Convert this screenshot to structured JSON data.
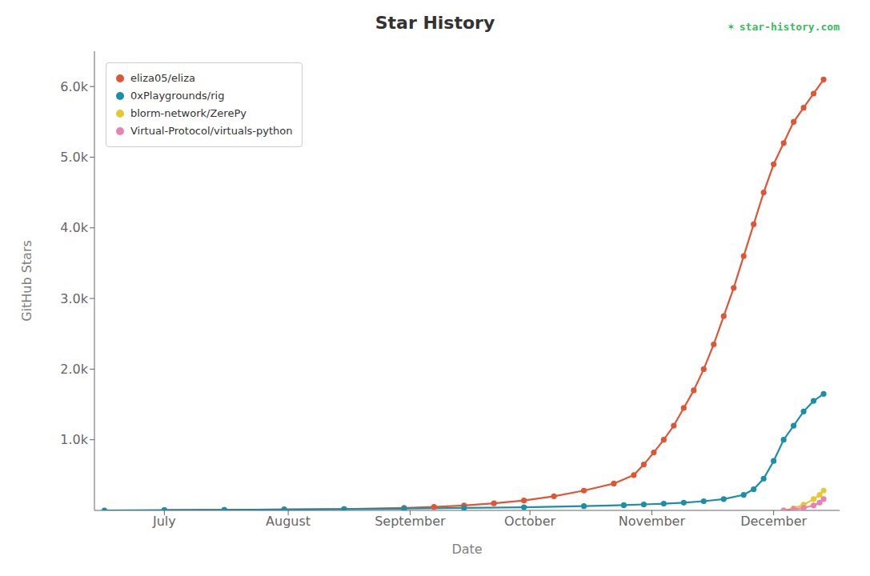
{
  "chart_data": {
    "type": "line",
    "title": "Star History",
    "x_label": "Date",
    "y_label": "GitHub Stars",
    "series": [
      {
        "name": "eliza05/eliza",
        "color": "#e05535",
        "x": [
          30,
          60,
          90,
          120,
          150,
          165,
          180,
          195,
          210,
          225,
          240,
          255,
          265,
          270,
          275,
          280,
          285,
          290,
          295,
          300,
          305,
          310,
          315,
          320,
          325,
          330,
          335,
          340,
          345,
          350,
          355,
          360
        ],
        "values": [
          5,
          8,
          12,
          20,
          35,
          50,
          70,
          100,
          140,
          200,
          280,
          380,
          500,
          650,
          820,
          1000,
          1200,
          1450,
          1700,
          2000,
          2350,
          2750,
          3150,
          3600,
          4050,
          4500,
          4900,
          5200,
          5500,
          5700,
          5900,
          6100
        ]
      },
      {
        "name": "0xPlaygrounds/rig",
        "color": "#1b8fa8",
        "x": [
          0,
          30,
          60,
          90,
          120,
          150,
          180,
          210,
          240,
          260,
          270,
          280,
          290,
          300,
          310,
          320,
          325,
          330,
          335,
          340,
          345,
          350,
          355,
          360
        ],
        "values": [
          0,
          5,
          8,
          12,
          18,
          25,
          35,
          45,
          60,
          75,
          85,
          95,
          110,
          130,
          160,
          220,
          300,
          450,
          700,
          1000,
          1200,
          1400,
          1550,
          1650
        ]
      },
      {
        "name": "blorm-network/ZerePy",
        "color": "#e8c832",
        "x": [
          340,
          345,
          350,
          355,
          358,
          360
        ],
        "values": [
          0,
          30,
          80,
          160,
          220,
          280
        ]
      },
      {
        "name": "Virtual-Protocol/virtuals-python",
        "color": "#e882b0",
        "x": [
          340,
          345,
          350,
          355,
          358,
          360
        ],
        "values": [
          0,
          15,
          35,
          70,
          110,
          160
        ]
      }
    ],
    "xlim": [
      -5,
      368
    ],
    "xticks": [
      {
        "value": 30,
        "label": "July"
      },
      {
        "value": 92,
        "label": "August"
      },
      {
        "value": 153,
        "label": "September"
      },
      {
        "value": 213,
        "label": "October"
      },
      {
        "value": 274,
        "label": "November"
      },
      {
        "value": 335,
        "label": "December"
      }
    ],
    "ylim": [
      0,
      6500
    ],
    "yticks": [
      {
        "value": 1000,
        "label": "1.0k"
      },
      {
        "value": 2000,
        "label": "2.0k"
      },
      {
        "value": 3000,
        "label": "3.0k"
      },
      {
        "value": 4000,
        "label": "4.0k"
      },
      {
        "value": 5000,
        "label": "5.0k"
      },
      {
        "value": 6000,
        "label": "6.0k"
      }
    ],
    "grid": false,
    "legend": "upper left",
    "annotations": [
      {
        "text": "✶",
        "color": "#3dba5f"
      },
      {
        "text": "star-history.com",
        "color": "#3dba5f"
      }
    ]
  }
}
